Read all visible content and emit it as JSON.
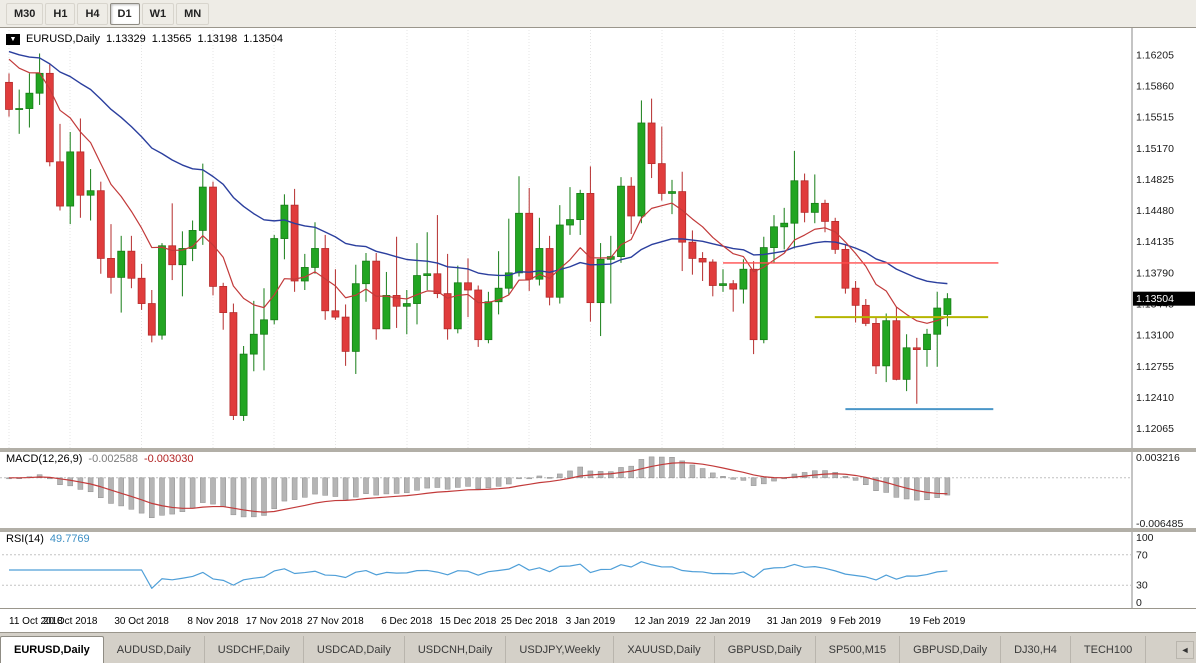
{
  "toolbar": {
    "timeframes": [
      {
        "label": "M30",
        "active": false
      },
      {
        "label": "H1",
        "active": false
      },
      {
        "label": "H4",
        "active": false
      },
      {
        "label": "D1",
        "active": true
      },
      {
        "label": "W1",
        "active": false
      },
      {
        "label": "MN",
        "active": false
      }
    ]
  },
  "chart": {
    "symbol_label": "EURUSD,Daily",
    "open": "1.13329",
    "high": "1.13565",
    "low": "1.13198",
    "close": "1.13504",
    "current_price": "1.13504",
    "dropdown_icon": "▼"
  },
  "macd_panel": {
    "label": "MACD(12,26,9)",
    "value_main": "-0.002588",
    "value_signal": "-0.003030"
  },
  "rsi_panel": {
    "label": "RSI(14)",
    "value": "49.7769"
  },
  "tabbar": {
    "scroll_left_icon": "◄"
  },
  "tabs": [
    {
      "label": "EURUSD,Daily",
      "active": true
    },
    {
      "label": "AUDUSD,Daily",
      "active": false
    },
    {
      "label": "USDCHF,Daily",
      "active": false
    },
    {
      "label": "USDCAD,Daily",
      "active": false
    },
    {
      "label": "USDCNH,Daily",
      "active": false
    },
    {
      "label": "USDJPY,Weekly",
      "active": false
    },
    {
      "label": "XAUUSD,Daily",
      "active": false
    },
    {
      "label": "GBPUSD,Daily",
      "active": false
    },
    {
      "label": "SP500,M15",
      "active": false
    },
    {
      "label": "GBPUSD,Daily",
      "active": false
    },
    {
      "label": "DJ30,H4",
      "active": false
    },
    {
      "label": "TECH100",
      "active": false
    }
  ],
  "chart_data": {
    "type": "candlestick",
    "symbol": "EURUSD",
    "timeframe": "Daily",
    "ylim": [
      1.1185,
      1.1648
    ],
    "y_axis_labels": [
      "1.16205",
      "1.15860",
      "1.15515",
      "1.15170",
      "1.14825",
      "1.14480",
      "1.14135",
      "1.13790",
      "1.13445",
      "1.13100",
      "1.12755",
      "1.12410",
      "1.12065"
    ],
    "x_tick_labels": [
      "11 Oct 2018",
      "20 Oct 2018",
      "30 Oct 2018",
      "8 Nov 2018",
      "17 Nov 2018",
      "27 Nov 2018",
      "6 Dec 2018",
      "15 Dec 2018",
      "25 Dec 2018",
      "3 Jan 2019",
      "12 Jan 2019",
      "22 Jan 2019",
      "31 Jan 2019",
      "9 Feb 2019",
      "19 Feb 2019"
    ],
    "x_tick_indices": [
      0,
      6,
      13,
      20,
      26,
      32,
      39,
      45,
      51,
      57,
      64,
      70,
      77,
      83,
      91
    ],
    "ohlc": [
      [
        1.159,
        1.16,
        1.1552,
        1.156
      ],
      [
        1.156,
        1.1582,
        1.1533,
        1.1561
      ],
      [
        1.1561,
        1.16,
        1.154,
        1.1578
      ],
      [
        1.1578,
        1.1622,
        1.1565,
        1.16
      ],
      [
        1.16,
        1.161,
        1.1497,
        1.1502
      ],
      [
        1.1502,
        1.1544,
        1.1448,
        1.1453
      ],
      [
        1.1453,
        1.1535,
        1.1433,
        1.1513
      ],
      [
        1.1513,
        1.155,
        1.144,
        1.1465
      ],
      [
        1.1465,
        1.1494,
        1.1437,
        1.147
      ],
      [
        1.147,
        1.148,
        1.1378,
        1.1395
      ],
      [
        1.1395,
        1.1433,
        1.1356,
        1.1374
      ],
      [
        1.1374,
        1.142,
        1.1335,
        1.1403
      ],
      [
        1.1403,
        1.142,
        1.1362,
        1.1373
      ],
      [
        1.1373,
        1.1389,
        1.1338,
        1.1345
      ],
      [
        1.1345,
        1.136,
        1.1302,
        1.131
      ],
      [
        1.131,
        1.1412,
        1.1305,
        1.1409
      ],
      [
        1.1409,
        1.1456,
        1.1371,
        1.1388
      ],
      [
        1.1388,
        1.1425,
        1.1353,
        1.1406
      ],
      [
        1.1406,
        1.1437,
        1.1392,
        1.1426
      ],
      [
        1.1426,
        1.15,
        1.141,
        1.1474
      ],
      [
        1.1474,
        1.148,
        1.1354,
        1.1364
      ],
      [
        1.1364,
        1.1368,
        1.1316,
        1.1335
      ],
      [
        1.1335,
        1.1345,
        1.1216,
        1.1221
      ],
      [
        1.1221,
        1.1298,
        1.1215,
        1.1289
      ],
      [
        1.1289,
        1.1348,
        1.127,
        1.1311
      ],
      [
        1.1311,
        1.1362,
        1.1271,
        1.1327
      ],
      [
        1.1327,
        1.1421,
        1.1322,
        1.1417
      ],
      [
        1.1417,
        1.1466,
        1.1394,
        1.1454
      ],
      [
        1.1454,
        1.1472,
        1.1358,
        1.137
      ],
      [
        1.137,
        1.14,
        1.136,
        1.1385
      ],
      [
        1.1385,
        1.1435,
        1.1378,
        1.1406
      ],
      [
        1.1406,
        1.1421,
        1.1327,
        1.1337
      ],
      [
        1.1337,
        1.1383,
        1.1327,
        1.133
      ],
      [
        1.133,
        1.1344,
        1.1276,
        1.1292
      ],
      [
        1.1292,
        1.1388,
        1.1267,
        1.1367
      ],
      [
        1.1367,
        1.1401,
        1.1347,
        1.1392
      ],
      [
        1.1392,
        1.1401,
        1.1305,
        1.1317
      ],
      [
        1.1317,
        1.138,
        1.1317,
        1.1354
      ],
      [
        1.1354,
        1.1419,
        1.1318,
        1.1342
      ],
      [
        1.1342,
        1.136,
        1.1311,
        1.1345
      ],
      [
        1.1345,
        1.1412,
        1.1322,
        1.1376
      ],
      [
        1.1376,
        1.1424,
        1.136,
        1.1378
      ],
      [
        1.1378,
        1.1443,
        1.1351,
        1.1356
      ],
      [
        1.1356,
        1.14,
        1.1305,
        1.1317
      ],
      [
        1.1317,
        1.1387,
        1.1312,
        1.1368
      ],
      [
        1.1368,
        1.1395,
        1.133,
        1.136
      ],
      [
        1.136,
        1.1365,
        1.1297,
        1.1305
      ],
      [
        1.1305,
        1.1358,
        1.1301,
        1.1347
      ],
      [
        1.1347,
        1.1403,
        1.1333,
        1.1362
      ],
      [
        1.1362,
        1.1439,
        1.1355,
        1.1379
      ],
      [
        1.1379,
        1.1486,
        1.1375,
        1.1445
      ],
      [
        1.1445,
        1.1473,
        1.1359,
        1.1372
      ],
      [
        1.1372,
        1.144,
        1.1365,
        1.1406
      ],
      [
        1.1406,
        1.142,
        1.1343,
        1.1352
      ],
      [
        1.1352,
        1.1454,
        1.1345,
        1.1432
      ],
      [
        1.1432,
        1.1474,
        1.1421,
        1.1438
      ],
      [
        1.1438,
        1.1471,
        1.1421,
        1.1467
      ],
      [
        1.1467,
        1.1497,
        1.1325,
        1.1346
      ],
      [
        1.1346,
        1.1412,
        1.1309,
        1.1394
      ],
      [
        1.1394,
        1.142,
        1.1345,
        1.1397
      ],
      [
        1.1397,
        1.1485,
        1.139,
        1.1475
      ],
      [
        1.1475,
        1.1485,
        1.1422,
        1.1442
      ],
      [
        1.1442,
        1.157,
        1.1434,
        1.1545
      ],
      [
        1.1545,
        1.1572,
        1.1484,
        1.15
      ],
      [
        1.15,
        1.1541,
        1.1459,
        1.1467
      ],
      [
        1.1467,
        1.1482,
        1.1444,
        1.1469
      ],
      [
        1.1469,
        1.1491,
        1.1381,
        1.1413
      ],
      [
        1.1413,
        1.1426,
        1.1377,
        1.1395
      ],
      [
        1.1395,
        1.1402,
        1.137,
        1.1391
      ],
      [
        1.1391,
        1.1394,
        1.1353,
        1.1365
      ],
      [
        1.1365,
        1.1383,
        1.1358,
        1.1367
      ],
      [
        1.1367,
        1.1371,
        1.1336,
        1.1361
      ],
      [
        1.1361,
        1.1394,
        1.1345,
        1.1383
      ],
      [
        1.1383,
        1.1392,
        1.1289,
        1.1305
      ],
      [
        1.1305,
        1.1419,
        1.1301,
        1.1407
      ],
      [
        1.1407,
        1.1443,
        1.139,
        1.143
      ],
      [
        1.143,
        1.1451,
        1.1405,
        1.1434
      ],
      [
        1.1434,
        1.1514,
        1.1406,
        1.1481
      ],
      [
        1.1481,
        1.1489,
        1.1435,
        1.1446
      ],
      [
        1.1446,
        1.1488,
        1.1434,
        1.1456
      ],
      [
        1.1456,
        1.146,
        1.1424,
        1.1436
      ],
      [
        1.1436,
        1.144,
        1.14,
        1.1405
      ],
      [
        1.1405,
        1.141,
        1.1356,
        1.1362
      ],
      [
        1.1362,
        1.137,
        1.1324,
        1.1343
      ],
      [
        1.1343,
        1.135,
        1.132,
        1.1323
      ],
      [
        1.1323,
        1.133,
        1.1267,
        1.1276
      ],
      [
        1.1276,
        1.1334,
        1.1258,
        1.1326
      ],
      [
        1.1326,
        1.1341,
        1.126,
        1.1261
      ],
      [
        1.1261,
        1.1311,
        1.1248,
        1.1296
      ],
      [
        1.1296,
        1.1307,
        1.1234,
        1.1294
      ],
      [
        1.1294,
        1.1317,
        1.1275,
        1.1311
      ],
      [
        1.1311,
        1.1358,
        1.1275,
        1.134
      ],
      [
        1.13329,
        1.13565,
        1.13198,
        1.13504
      ]
    ],
    "ma_fast": {
      "period": 10,
      "color": "#c23a3a"
    },
    "ma_slow": {
      "period": 34,
      "color": "#2b3f9e"
    },
    "ma_seed_value": 1.1628,
    "hlines": [
      {
        "price": 1.139,
        "from_index": 70,
        "to_index": 97,
        "color": "#ff4d4d",
        "width": 1.4
      },
      {
        "price": 1.133,
        "from_index": 79,
        "to_index": 96,
        "color": "#b5b500",
        "width": 2
      },
      {
        "price": 1.1228,
        "from_index": 82,
        "to_index": 96.5,
        "color": "#4a96c8",
        "width": 2
      }
    ],
    "macd": {
      "ylim": [
        -0.007,
        0.0036
      ],
      "axis_labels": [
        "0.003216",
        "-0.006485"
      ]
    },
    "rsi": {
      "levels": [
        70,
        30
      ],
      "axis_labels": [
        "100",
        "70",
        "30",
        "0"
      ]
    },
    "colors": {
      "up": "#22a522",
      "up_border": "#167d16",
      "down": "#e03c3c",
      "down_border": "#b52c2c",
      "macd_hist": "#b5b5b5",
      "macd_hist_border": "#8f8f8f",
      "macd_signal": "#c23a3a",
      "rsi_line": "#4f9fd8",
      "grid": "#e4e4e4",
      "axis_text": "#1a1a1a",
      "price_tag_bg": "#000000",
      "price_tag_text": "#ffffff",
      "separator": "#b2afa7"
    }
  }
}
